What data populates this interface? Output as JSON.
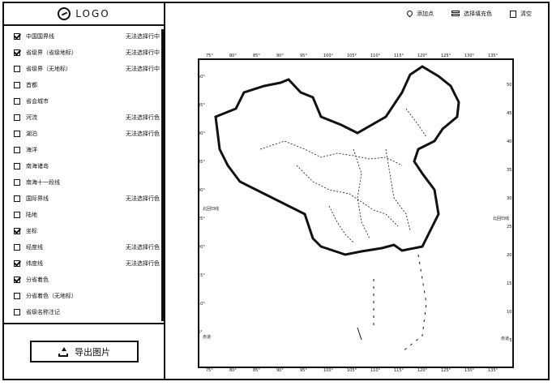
{
  "sidebar": {
    "logo_text": "LOGO",
    "layers": [
      {
        "label": "中国国界线",
        "checked": true,
        "action": "无法选择行中"
      },
      {
        "label": "省级界（省级地标）",
        "checked": true,
        "action": "无法选择行中"
      },
      {
        "label": "省级界（无地标）",
        "checked": false,
        "action": "无法选择行中"
      },
      {
        "label": "首都",
        "checked": false,
        "action": ""
      },
      {
        "label": "省会城市",
        "checked": false,
        "action": ""
      },
      {
        "label": "河流",
        "checked": false,
        "action": "无法选择行色"
      },
      {
        "label": "湖泊",
        "checked": false,
        "action": "无法选择行色"
      },
      {
        "label": "海洋",
        "checked": false,
        "action": ""
      },
      {
        "label": "南海诸岛",
        "checked": false,
        "action": ""
      },
      {
        "label": "南海十一段线",
        "checked": false,
        "action": ""
      },
      {
        "label": "国际界线",
        "checked": false,
        "action": "无法选择行色"
      },
      {
        "label": "陆地",
        "checked": false,
        "action": ""
      },
      {
        "label": "坐标",
        "checked": true,
        "action": ""
      },
      {
        "label": "经度线",
        "checked": false,
        "action": "无法选择行色"
      },
      {
        "label": "纬度线",
        "checked": true,
        "action": "无法选择行色"
      },
      {
        "label": "分省着色",
        "checked": true,
        "action": ""
      },
      {
        "label": "分省着色（无地标）",
        "checked": false,
        "action": ""
      },
      {
        "label": "省级名称注记",
        "checked": false,
        "action": ""
      }
    ],
    "export_label": "导出图片"
  },
  "toolbar": {
    "locate_label": "添加点",
    "color_label": "选择填充色",
    "clear_label": "清空"
  },
  "map": {
    "left_ticks": [
      "50°",
      "45°",
      "40°",
      "35°",
      "30°",
      "25°",
      "20°",
      "15°",
      "10°",
      "5°"
    ],
    "right_ticks": [
      "50°",
      "45°",
      "40°",
      "35°",
      "30°",
      "25°",
      "20°",
      "15°",
      "10°",
      "5°"
    ],
    "top_ticks": [
      "75°",
      "80°",
      "85°",
      "90°",
      "95°",
      "100°",
      "105°",
      "110°",
      "115°",
      "120°",
      "125°",
      "130°",
      "135°"
    ],
    "bottom_ticks": [
      "75°",
      "80°",
      "85°",
      "90°",
      "95°",
      "100°",
      "105°",
      "110°",
      "115°",
      "120°",
      "125°",
      "130°",
      "135°"
    ],
    "left_note": "北回归线",
    "right_note": "北回归线",
    "bottom_left_note": "赤道",
    "bottom_right_note": "赤道"
  }
}
